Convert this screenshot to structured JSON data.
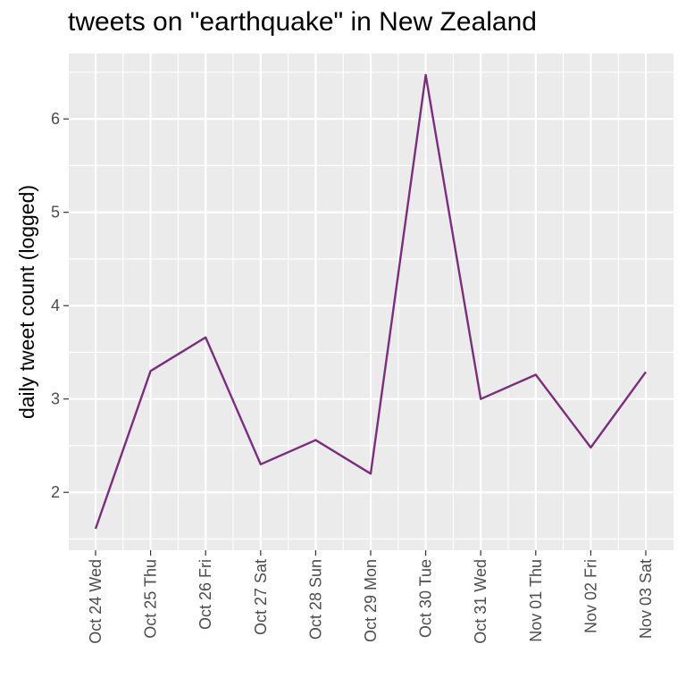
{
  "chart_data": {
    "type": "line",
    "title": "tweets on \"earthquake\" in New Zealand",
    "xlabel": "",
    "ylabel": "daily tweet count (logged)",
    "categories": [
      "Oct 24 Wed",
      "Oct 25 Thu",
      "Oct 26 Fri",
      "Oct 27 Sat",
      "Oct 28 Sun",
      "Oct 29 Mon",
      "Oct 30 Tue",
      "Oct 31 Wed",
      "Nov 01 Thu",
      "Nov 02 Fri",
      "Nov 03 Sat"
    ],
    "series": [
      {
        "values": [
          1.61,
          3.3,
          3.66,
          2.3,
          2.56,
          2.2,
          6.47,
          3.0,
          3.26,
          2.48,
          3.29
        ]
      }
    ],
    "yticks": [
      2,
      3,
      4,
      5,
      6
    ],
    "ylim": [
      1.38,
      6.7
    ],
    "grid": true,
    "colors": {
      "line": "#7b2d7e",
      "panel": "#ebebeb",
      "grid": "#ffffff"
    }
  }
}
